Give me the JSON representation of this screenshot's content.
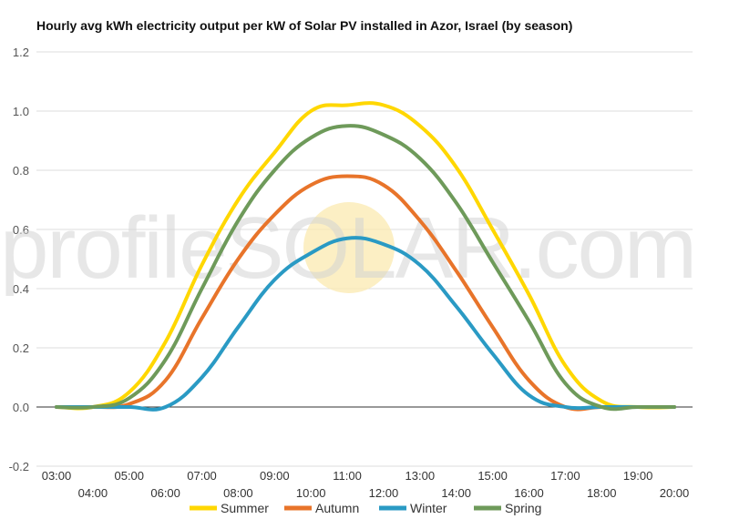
{
  "chart_data": {
    "type": "line",
    "title": "Hourly avg kWh electricity output per kW of Solar PV installed in Azor, Israel (by season)",
    "watermark": "profileSOLAR.com",
    "xlabel": "",
    "ylabel": "",
    "ylim": [
      -0.2,
      1.2
    ],
    "yticks": [
      "-0.2",
      "0.0",
      "0.2",
      "0.4",
      "0.6",
      "0.8",
      "1.0",
      "1.2"
    ],
    "ytick_values": [
      -0.2,
      0.0,
      0.2,
      0.4,
      0.6,
      0.8,
      1.0,
      1.2
    ],
    "categories": [
      "03:00",
      "04:00",
      "05:00",
      "06:00",
      "07:00",
      "08:00",
      "09:00",
      "10:00",
      "11:00",
      "12:00",
      "13:00",
      "14:00",
      "15:00",
      "16:00",
      "17:00",
      "18:00",
      "19:00",
      "20:00"
    ],
    "grid": true,
    "legend_position": "bottom",
    "series": [
      {
        "name": "Summer",
        "color": "#FFD700",
        "values": [
          0.0,
          0.0,
          0.05,
          0.22,
          0.48,
          0.7,
          0.86,
          1.0,
          1.02,
          1.02,
          0.95,
          0.81,
          0.6,
          0.38,
          0.14,
          0.02,
          0.0,
          0.0
        ]
      },
      {
        "name": "Autumn",
        "color": "#E8742A",
        "values": [
          0.0,
          0.0,
          0.01,
          0.09,
          0.3,
          0.5,
          0.65,
          0.75,
          0.78,
          0.75,
          0.63,
          0.46,
          0.27,
          0.09,
          0.0,
          0.0,
          0.0,
          0.0
        ]
      },
      {
        "name": "Winter",
        "color": "#2A9AC4",
        "values": [
          0.0,
          0.0,
          0.0,
          0.0,
          0.1,
          0.27,
          0.43,
          0.52,
          0.57,
          0.55,
          0.48,
          0.34,
          0.18,
          0.04,
          0.0,
          0.0,
          0.0,
          0.0
        ]
      },
      {
        "name": "Spring",
        "color": "#6E9A5A",
        "values": [
          0.0,
          0.0,
          0.03,
          0.16,
          0.4,
          0.63,
          0.8,
          0.91,
          0.95,
          0.92,
          0.84,
          0.69,
          0.49,
          0.29,
          0.08,
          0.0,
          0.0,
          0.0
        ]
      }
    ]
  }
}
